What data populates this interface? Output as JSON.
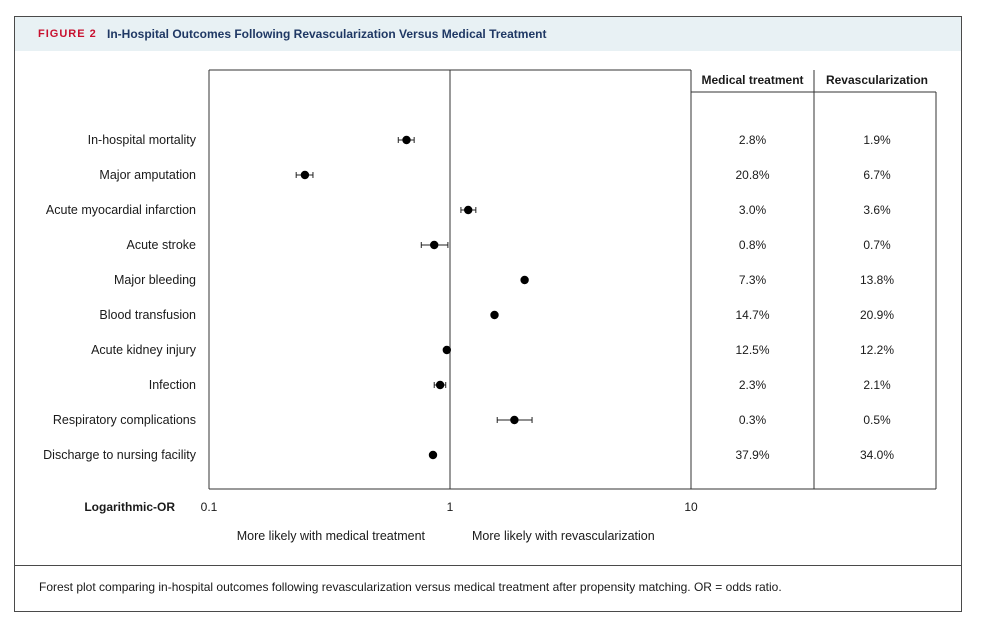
{
  "figure": {
    "label": "FIGURE 2",
    "title": "In-Hospital Outcomes Following Revascularization Versus Medical Treatment",
    "caption": "Forest plot comparing in-hospital outcomes following revascularization versus medical treatment after propensity matching. OR = odds ratio."
  },
  "colors": {
    "label": "#c8102e",
    "title": "#1f3864",
    "header_bg": "#e8f1f4",
    "point": "#000000"
  },
  "chart_data": {
    "type": "forest",
    "xscale": "log",
    "xlim": [
      0.1,
      10
    ],
    "xticks": [
      0.1,
      1,
      10
    ],
    "xtick_labels": [
      "0.1",
      "1",
      "10"
    ],
    "xlabel": "Logarithmic-OR",
    "reference_line": 1,
    "direction_labels": [
      "More likely with medical treatment",
      "More likely with revascularization"
    ],
    "table_headers": [
      "Medical treatment",
      "Revascularization"
    ],
    "rows": [
      {
        "outcome": "In-hospital mortality",
        "or": 0.66,
        "ci": [
          0.61,
          0.71
        ],
        "medical": "2.8%",
        "revasc": "1.9%"
      },
      {
        "outcome": "Major amputation",
        "or": 0.25,
        "ci": [
          0.23,
          0.27
        ],
        "medical": "20.8%",
        "revasc": "6.7%"
      },
      {
        "outcome": "Acute myocardial infarction",
        "or": 1.19,
        "ci": [
          1.11,
          1.28
        ],
        "medical": "3.0%",
        "revasc": "3.6%"
      },
      {
        "outcome": "Acute stroke",
        "or": 0.86,
        "ci": [
          0.76,
          0.98
        ],
        "medical": "0.8%",
        "revasc": "0.7%"
      },
      {
        "outcome": "Major bleeding",
        "or": 2.04,
        "ci": [
          2.0,
          2.08
        ],
        "medical": "7.3%",
        "revasc": "13.8%"
      },
      {
        "outcome": "Blood transfusion",
        "or": 1.53,
        "ci": [
          1.5,
          1.56
        ],
        "medical": "14.7%",
        "revasc": "20.9%"
      },
      {
        "outcome": "Acute kidney injury",
        "or": 0.97,
        "ci": [
          0.95,
          0.99
        ],
        "medical": "12.5%",
        "revasc": "12.2%"
      },
      {
        "outcome": "Infection",
        "or": 0.91,
        "ci": [
          0.86,
          0.96
        ],
        "medical": "2.3%",
        "revasc": "2.1%"
      },
      {
        "outcome": "Respiratory complications",
        "or": 1.85,
        "ci": [
          1.57,
          2.19
        ],
        "medical": "0.3%",
        "revasc": "0.5%"
      },
      {
        "outcome": "Discharge to nursing facility",
        "or": 0.85,
        "ci": [
          0.84,
          0.86
        ],
        "medical": "37.9%",
        "revasc": "34.0%"
      }
    ]
  }
}
